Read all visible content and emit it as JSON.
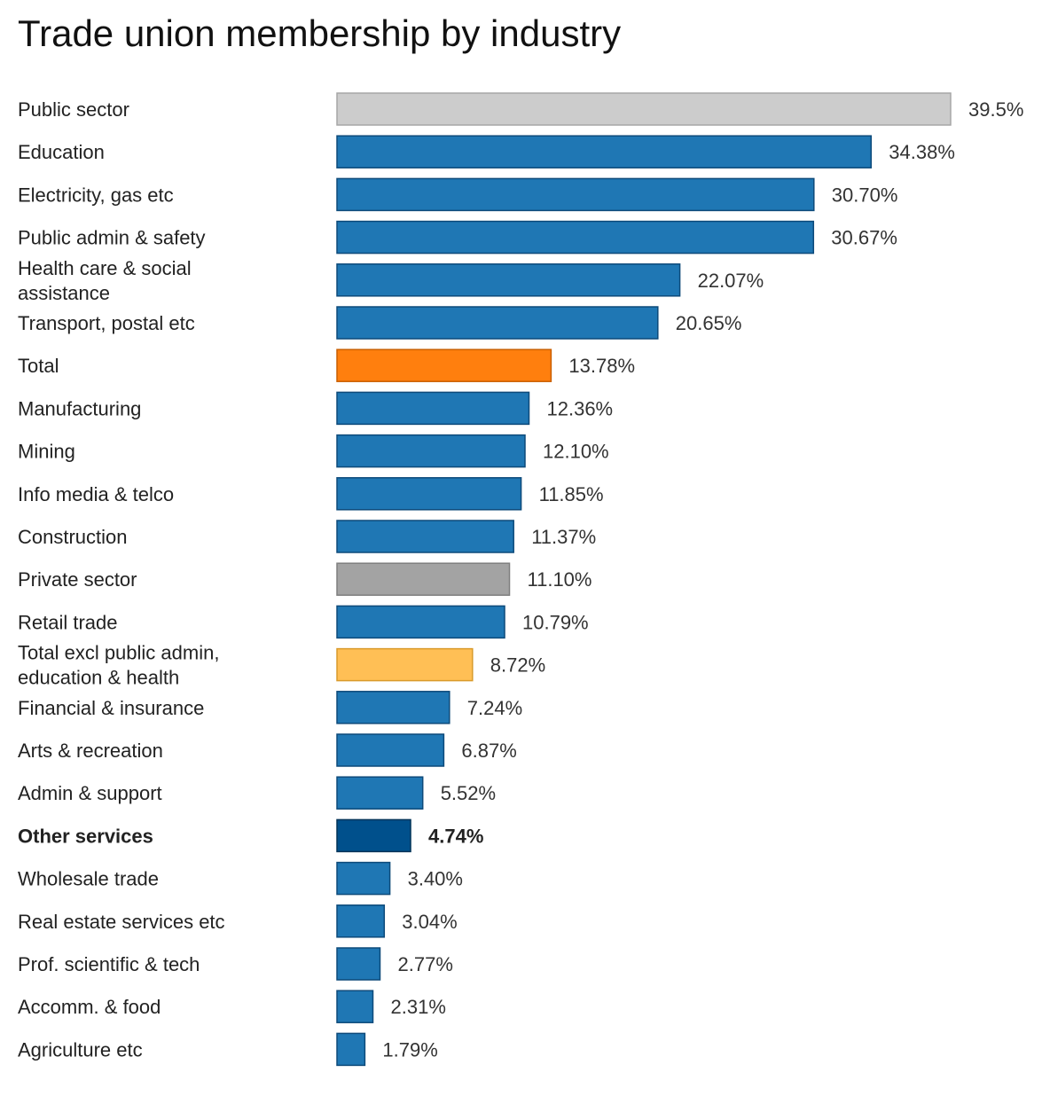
{
  "chart_data": {
    "type": "bar",
    "orientation": "horizontal",
    "title": "Trade union membership by industry",
    "xlabel": "",
    "ylabel": "",
    "xlim": [
      0,
      39.5
    ],
    "grid": false,
    "categories": [
      "Public sector",
      "Education",
      "Electricity, gas etc",
      "Public admin & safety",
      "Health care & social assistance",
      "Transport, postal etc",
      "Total",
      "Manufacturing",
      "Mining",
      "Info media & telco",
      "Construction",
      "Private sector",
      "Retail trade",
      "Total excl public admin, education & health",
      "Financial & insurance",
      "Arts & recreation",
      "Admin & support",
      "Other services",
      "Wholesale trade",
      "Real estate services etc",
      "Prof. scientific & tech",
      "Accomm. & food",
      "Agriculture etc"
    ],
    "category_lines": [
      [
        "Public sector"
      ],
      [
        "Education"
      ],
      [
        "Electricity, gas etc"
      ],
      [
        "Public admin & safety"
      ],
      [
        "Health care & social",
        "assistance"
      ],
      [
        "Transport, postal etc"
      ],
      [
        "Total"
      ],
      [
        "Manufacturing"
      ],
      [
        "Mining"
      ],
      [
        "Info media & telco"
      ],
      [
        "Construction"
      ],
      [
        "Private sector"
      ],
      [
        "Retail trade"
      ],
      [
        "Total excl public admin,",
        "education & health"
      ],
      [
        "Financial & insurance"
      ],
      [
        "Arts & recreation"
      ],
      [
        "Admin & support"
      ],
      [
        "Other services"
      ],
      [
        "Wholesale trade"
      ],
      [
        "Real estate services etc"
      ],
      [
        "Prof. scientific & tech"
      ],
      [
        "Accomm. & food"
      ],
      [
        "Agriculture etc"
      ]
    ],
    "values": [
      39.5,
      34.38,
      30.7,
      30.67,
      22.07,
      20.65,
      13.78,
      12.36,
      12.1,
      11.85,
      11.37,
      11.1,
      10.79,
      8.72,
      7.24,
      6.87,
      5.52,
      4.74,
      3.4,
      3.04,
      2.77,
      2.31,
      1.79
    ],
    "value_labels": [
      "39.5%",
      "34.38%",
      "30.70%",
      "30.67%",
      "22.07%",
      "20.65%",
      "13.78%",
      "12.36%",
      "12.10%",
      "11.85%",
      "11.37%",
      "11.10%",
      "10.79%",
      "8.72%",
      "7.24%",
      "6.87%",
      "5.52%",
      "4.74%",
      "3.40%",
      "3.04%",
      "2.77%",
      "2.31%",
      "1.79%"
    ],
    "highlight": "Other services",
    "colors": {
      "default": "#1f77b4",
      "default_stroke": "#0d4a7a",
      "highlight": "#00508c",
      "highlight_stroke": "#003257",
      "public_sector": "#cccccc",
      "public_sector_stroke": "#a6a6a6",
      "private_sector": "#a3a3a3",
      "private_sector_stroke": "#7f7f7f",
      "total": "#ff7f0e",
      "total_stroke": "#c95f00",
      "total_excl": "#ffbf55",
      "total_excl_stroke": "#d99a2b"
    },
    "bar_color_keys": [
      "public_sector",
      "default",
      "default",
      "default",
      "default",
      "default",
      "total",
      "default",
      "default",
      "default",
      "default",
      "private_sector",
      "default",
      "total_excl",
      "default",
      "default",
      "default",
      "highlight",
      "default",
      "default",
      "default",
      "default",
      "default"
    ]
  }
}
